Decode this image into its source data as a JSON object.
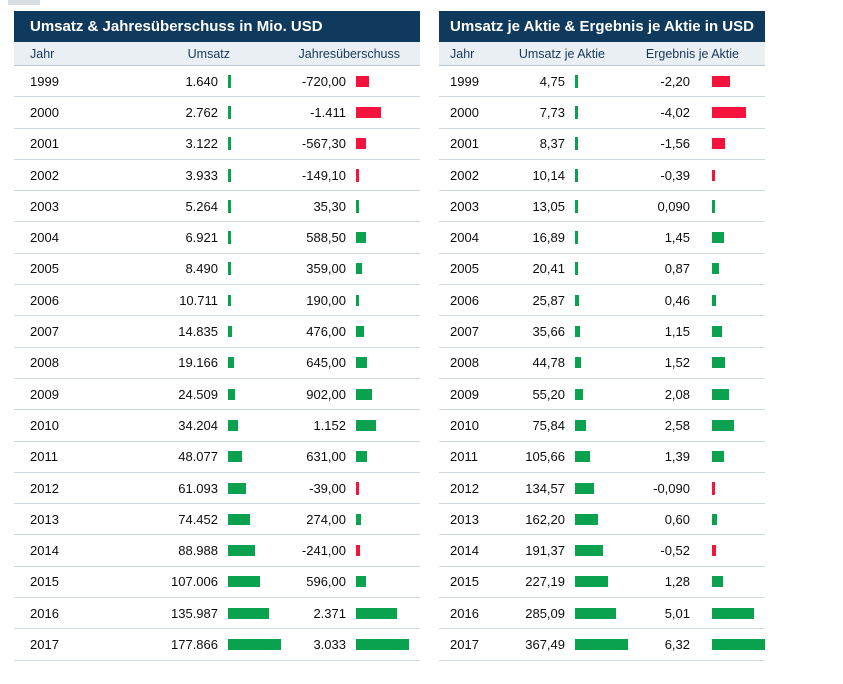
{
  "colors": {
    "title_bar": "#0f3a5d",
    "positive_bar": "#0aa14f",
    "negative_bar": "#f5133d",
    "header_background": "#eaeff3"
  },
  "chart_data": [
    {
      "type": "table",
      "title": "Umsatz & Jahresüberschuss in Mio. USD",
      "columns": [
        "Jahr",
        "Umsatz",
        "Jahresüberschuss"
      ],
      "rows": [
        {
          "year": "1999",
          "value1": "1.640",
          "value1_num": 1640,
          "value2": "-720,00",
          "value2_num": -720.0
        },
        {
          "year": "2000",
          "value1": "2.762",
          "value1_num": 2762,
          "value2": "-1.411",
          "value2_num": -1411
        },
        {
          "year": "2001",
          "value1": "3.122",
          "value1_num": 3122,
          "value2": "-567,30",
          "value2_num": -567.3
        },
        {
          "year": "2002",
          "value1": "3.933",
          "value1_num": 3933,
          "value2": "-149,10",
          "value2_num": -149.1
        },
        {
          "year": "2003",
          "value1": "5.264",
          "value1_num": 5264,
          "value2": "35,30",
          "value2_num": 35.3
        },
        {
          "year": "2004",
          "value1": "6.921",
          "value1_num": 6921,
          "value2": "588,50",
          "value2_num": 588.5
        },
        {
          "year": "2005",
          "value1": "8.490",
          "value1_num": 8490,
          "value2": "359,00",
          "value2_num": 359.0
        },
        {
          "year": "2006",
          "value1": "10.711",
          "value1_num": 10711,
          "value2": "190,00",
          "value2_num": 190.0
        },
        {
          "year": "2007",
          "value1": "14.835",
          "value1_num": 14835,
          "value2": "476,00",
          "value2_num": 476.0
        },
        {
          "year": "2008",
          "value1": "19.166",
          "value1_num": 19166,
          "value2": "645,00",
          "value2_num": 645.0
        },
        {
          "year": "2009",
          "value1": "24.509",
          "value1_num": 24509,
          "value2": "902,00",
          "value2_num": 902.0
        },
        {
          "year": "2010",
          "value1": "34.204",
          "value1_num": 34204,
          "value2": "1.152",
          "value2_num": 1152
        },
        {
          "year": "2011",
          "value1": "48.077",
          "value1_num": 48077,
          "value2": "631,00",
          "value2_num": 631.0
        },
        {
          "year": "2012",
          "value1": "61.093",
          "value1_num": 61093,
          "value2": "-39,00",
          "value2_num": -39.0
        },
        {
          "year": "2013",
          "value1": "74.452",
          "value1_num": 74452,
          "value2": "274,00",
          "value2_num": 274.0
        },
        {
          "year": "2014",
          "value1": "88.988",
          "value1_num": 88988,
          "value2": "-241,00",
          "value2_num": -241.0
        },
        {
          "year": "2015",
          "value1": "107.006",
          "value1_num": 107006,
          "value2": "596,00",
          "value2_num": 596.0
        },
        {
          "year": "2016",
          "value1": "135.987",
          "value1_num": 135987,
          "value2": "2.371",
          "value2_num": 2371
        },
        {
          "year": "2017",
          "value1": "177.866",
          "value1_num": 177866,
          "value2": "3.033",
          "value2_num": 3033
        }
      ]
    },
    {
      "type": "table",
      "title": "Umsatz je Aktie & Ergebnis je Aktie in USD",
      "columns": [
        "Jahr",
        "Umsatz je Aktie",
        "Ergebnis je Aktie"
      ],
      "rows": [
        {
          "year": "1999",
          "value1": "4,75",
          "value1_num": 4.75,
          "value2": "-2,20",
          "value2_num": -2.2
        },
        {
          "year": "2000",
          "value1": "7,73",
          "value1_num": 7.73,
          "value2": "-4,02",
          "value2_num": -4.02
        },
        {
          "year": "2001",
          "value1": "8,37",
          "value1_num": 8.37,
          "value2": "-1,56",
          "value2_num": -1.56
        },
        {
          "year": "2002",
          "value1": "10,14",
          "value1_num": 10.14,
          "value2": "-0,39",
          "value2_num": -0.39
        },
        {
          "year": "2003",
          "value1": "13,05",
          "value1_num": 13.05,
          "value2": "0,090",
          "value2_num": 0.09
        },
        {
          "year": "2004",
          "value1": "16,89",
          "value1_num": 16.89,
          "value2": "1,45",
          "value2_num": 1.45
        },
        {
          "year": "2005",
          "value1": "20,41",
          "value1_num": 20.41,
          "value2": "0,87",
          "value2_num": 0.87
        },
        {
          "year": "2006",
          "value1": "25,87",
          "value1_num": 25.87,
          "value2": "0,46",
          "value2_num": 0.46
        },
        {
          "year": "2007",
          "value1": "35,66",
          "value1_num": 35.66,
          "value2": "1,15",
          "value2_num": 1.15
        },
        {
          "year": "2008",
          "value1": "44,78",
          "value1_num": 44.78,
          "value2": "1,52",
          "value2_num": 1.52
        },
        {
          "year": "2009",
          "value1": "55,20",
          "value1_num": 55.2,
          "value2": "2,08",
          "value2_num": 2.08
        },
        {
          "year": "2010",
          "value1": "75,84",
          "value1_num": 75.84,
          "value2": "2,58",
          "value2_num": 2.58
        },
        {
          "year": "2011",
          "value1": "105,66",
          "value1_num": 105.66,
          "value2": "1,39",
          "value2_num": 1.39
        },
        {
          "year": "2012",
          "value1": "134,57",
          "value1_num": 134.57,
          "value2": "-0,090",
          "value2_num": -0.09
        },
        {
          "year": "2013",
          "value1": "162,20",
          "value1_num": 162.2,
          "value2": "0,60",
          "value2_num": 0.6
        },
        {
          "year": "2014",
          "value1": "191,37",
          "value1_num": 191.37,
          "value2": "-0,52",
          "value2_num": -0.52
        },
        {
          "year": "2015",
          "value1": "227,19",
          "value1_num": 227.19,
          "value2": "1,28",
          "value2_num": 1.28
        },
        {
          "year": "2016",
          "value1": "285,09",
          "value1_num": 285.09,
          "value2": "5,01",
          "value2_num": 5.01
        },
        {
          "year": "2017",
          "value1": "367,49",
          "value1_num": 367.49,
          "value2": "6,32",
          "value2_num": 6.32
        }
      ]
    }
  ]
}
